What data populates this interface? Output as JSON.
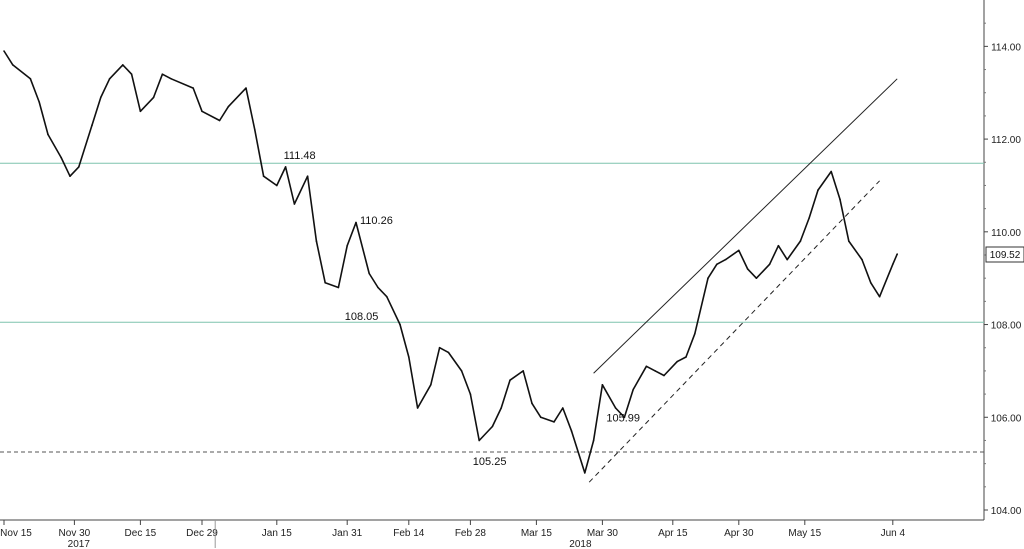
{
  "chart_data": {
    "type": "line",
    "title": "",
    "xlabel": "",
    "ylabel": "",
    "ylim": [
      104.0,
      115.0
    ],
    "y_ticks": [
      104.0,
      106.0,
      108.0,
      110.0,
      112.0,
      114.0
    ],
    "y_tick_labels": [
      "104.00",
      "106.00",
      "108.00",
      "110.00",
      "112.00",
      "114.00"
    ],
    "x_tick_labels": [
      "Nov 15",
      "Nov 30",
      "Dec 15",
      "Dec 29",
      "Jan 15",
      "Jan 31",
      "Feb 14",
      "Feb 28",
      "Mar 15",
      "Mar 30",
      "Apr 15",
      "Apr 30",
      "May 15",
      "Jun 4"
    ],
    "year_labels": [
      "2017",
      "2018"
    ],
    "grid": false,
    "last_price": 109.52,
    "last_price_label": "109.52",
    "series": [
      {
        "x": [
          "2017-11-14",
          "2017-11-16",
          "2017-11-20",
          "2017-11-22",
          "2017-11-24",
          "2017-11-27",
          "2017-11-29",
          "2017-12-01",
          "2017-12-04",
          "2017-12-06",
          "2017-12-08",
          "2017-12-11",
          "2017-12-13",
          "2017-12-15",
          "2017-12-18",
          "2017-12-20",
          "2017-12-22",
          "2017-12-27",
          "2017-12-29",
          "2018-01-02",
          "2018-01-04",
          "2018-01-08",
          "2018-01-10",
          "2018-01-12",
          "2018-01-15",
          "2018-01-17",
          "2018-01-19",
          "2018-01-22",
          "2018-01-24",
          "2018-01-26",
          "2018-01-29",
          "2018-01-31",
          "2018-02-02",
          "2018-02-05",
          "2018-02-07",
          "2018-02-09",
          "2018-02-12",
          "2018-02-14",
          "2018-02-16",
          "2018-02-19",
          "2018-02-21",
          "2018-02-23",
          "2018-02-26",
          "2018-02-28",
          "2018-03-02",
          "2018-03-05",
          "2018-03-07",
          "2018-03-09",
          "2018-03-12",
          "2018-03-14",
          "2018-03-16",
          "2018-03-19",
          "2018-03-21",
          "2018-03-23",
          "2018-03-26",
          "2018-03-28",
          "2018-03-30",
          "2018-04-02",
          "2018-04-04",
          "2018-04-06",
          "2018-04-09",
          "2018-04-11",
          "2018-04-13",
          "2018-04-16",
          "2018-04-18",
          "2018-04-20",
          "2018-04-23",
          "2018-04-25",
          "2018-04-27",
          "2018-04-30",
          "2018-05-02",
          "2018-05-04",
          "2018-05-07",
          "2018-05-09",
          "2018-05-11",
          "2018-05-14",
          "2018-05-16",
          "2018-05-18",
          "2018-05-21",
          "2018-05-23",
          "2018-05-25",
          "2018-05-28",
          "2018-05-30",
          "2018-06-01",
          "2018-06-04",
          "2018-06-05"
        ],
        "values": [
          113.9,
          113.6,
          113.3,
          112.8,
          112.1,
          111.6,
          111.2,
          111.4,
          112.3,
          112.9,
          113.3,
          113.6,
          113.4,
          112.6,
          112.9,
          113.4,
          113.3,
          113.1,
          112.6,
          112.4,
          112.7,
          113.1,
          112.2,
          111.2,
          111.0,
          111.4,
          110.6,
          111.2,
          109.8,
          108.9,
          108.8,
          109.7,
          110.2,
          109.1,
          108.8,
          108.6,
          108.0,
          107.3,
          106.2,
          106.7,
          107.5,
          107.4,
          107.0,
          106.5,
          105.5,
          105.8,
          106.2,
          106.8,
          107.0,
          106.3,
          106.0,
          105.9,
          106.2,
          105.7,
          104.8,
          105.5,
          106.7,
          106.2,
          106.0,
          106.6,
          107.1,
          107.0,
          106.9,
          107.2,
          107.3,
          107.8,
          109.0,
          109.3,
          109.4,
          109.6,
          109.2,
          109.0,
          109.3,
          109.7,
          109.4,
          109.8,
          110.3,
          110.9,
          111.3,
          110.7,
          109.8,
          109.4,
          108.9,
          108.6,
          109.3,
          109.52
        ]
      }
    ],
    "horizontal_lines": [
      {
        "y": 111.48,
        "style": "solid",
        "color": "#7fc4ae"
      },
      {
        "y": 108.05,
        "style": "solid",
        "color": "#7fc4ae"
      },
      {
        "y": 105.25,
        "style": "dashed",
        "color": "#555555"
      }
    ],
    "trendlines": [
      {
        "x1": "2018-03-28",
        "y1": 106.95,
        "x2": "2018-06-05",
        "y2": 113.3,
        "style": "solid",
        "color": "#222222"
      },
      {
        "x1": "2018-03-27",
        "y1": 104.6,
        "x2": "2018-06-01",
        "y2": 111.1,
        "style": "dashed",
        "color": "#222222"
      }
    ],
    "annotations": [
      {
        "text": "111.48",
        "x": "2018-01-17",
        "y": 111.48,
        "anchor": "above"
      },
      {
        "text": "110.26",
        "x": "2018-02-02",
        "y": 110.26,
        "anchor": "right"
      },
      {
        "text": "108.05",
        "x": "2018-02-08",
        "y": 108.05,
        "anchor": "left"
      },
      {
        "text": "105.25",
        "x": "2018-03-01",
        "y": 105.25,
        "anchor": "below"
      },
      {
        "text": "105.99",
        "x": "2018-03-30",
        "y": 105.99,
        "anchor": "right"
      }
    ]
  }
}
